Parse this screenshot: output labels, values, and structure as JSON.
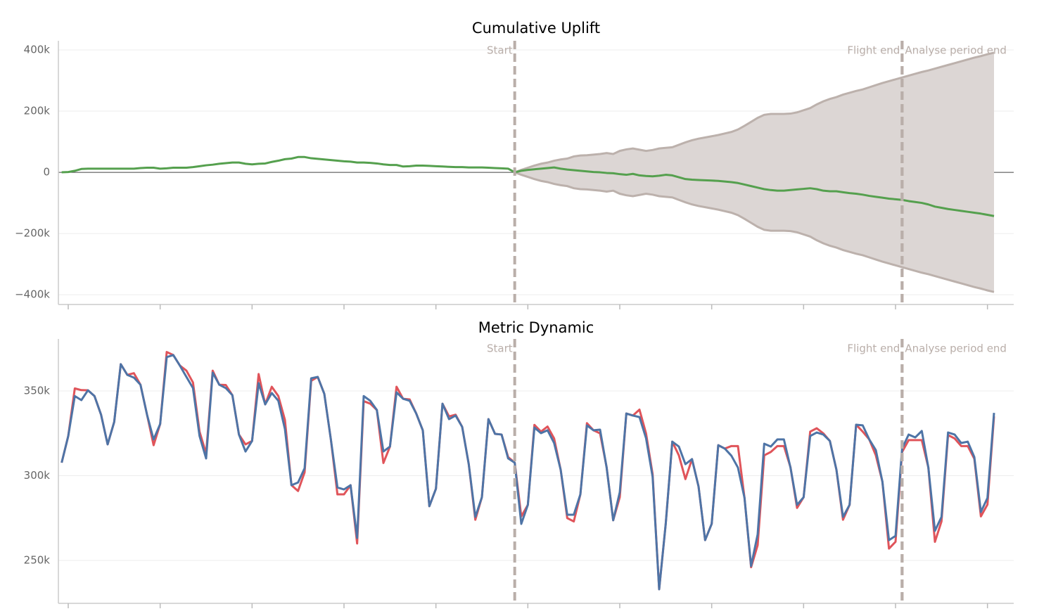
{
  "chart_data": [
    {
      "type": "line",
      "title": "Cumulative Uplift",
      "x": [
        0,
        1,
        2,
        3,
        4,
        5,
        6,
        7,
        8,
        9,
        10,
        11,
        12,
        13,
        14,
        15,
        16,
        17,
        18,
        19,
        20,
        21,
        22,
        23,
        24,
        25,
        26,
        27,
        28,
        29,
        30,
        31,
        32,
        33,
        34,
        35,
        36,
        37,
        38,
        39,
        40,
        41,
        42,
        43,
        44,
        45,
        46,
        47,
        48,
        49,
        50,
        51,
        52,
        53,
        54,
        55,
        56,
        57,
        58,
        59,
        60,
        61,
        62,
        63,
        64,
        65,
        66,
        67,
        68,
        69,
        70,
        71,
        72,
        73,
        74,
        75,
        76,
        77,
        78,
        79,
        80,
        81,
        82,
        83,
        84,
        85,
        86,
        87,
        88,
        89,
        90,
        91,
        92,
        93,
        94,
        95,
        96,
        97,
        98,
        99,
        100,
        101,
        102,
        103,
        104,
        105,
        106,
        107,
        108,
        109,
        110,
        111,
        112,
        113,
        114,
        115,
        116,
        117,
        118,
        119,
        120,
        121,
        122,
        123,
        124,
        125,
        126,
        127,
        128,
        129,
        130,
        131,
        132,
        133,
        134,
        135,
        136,
        137,
        138,
        139,
        140,
        141,
        142
      ],
      "series": [
        {
          "color": "#55a04e",
          "values": [
            0,
            1000,
            5000,
            11000,
            12000,
            12000,
            12000,
            12000,
            12000,
            12000,
            12000,
            12000,
            14000,
            15000,
            15000,
            12000,
            13000,
            15000,
            15000,
            15000,
            17000,
            20000,
            23000,
            25000,
            28000,
            30000,
            32000,
            32000,
            28000,
            26000,
            28000,
            29000,
            34000,
            38000,
            43000,
            45000,
            50000,
            50000,
            46000,
            44000,
            42000,
            40000,
            38000,
            36000,
            35000,
            32000,
            32000,
            31000,
            29000,
            26000,
            24000,
            24000,
            19000,
            20000,
            22000,
            22000,
            21000,
            20000,
            19000,
            18000,
            17000,
            17000,
            16000,
            16000,
            16000,
            15000,
            14000,
            13000,
            12000,
            0,
            5000,
            8000,
            10000,
            12000,
            14000,
            16000,
            12000,
            9000,
            7000,
            5000,
            3000,
            1000,
            0,
            -2000,
            -3000,
            -6000,
            -8000,
            -5000,
            -10000,
            -12000,
            -13000,
            -11000,
            -8000,
            -10000,
            -16000,
            -22000,
            -24000,
            -25000,
            -26000,
            -27000,
            -28000,
            -30000,
            -32000,
            -35000,
            -40000,
            -45000,
            -50000,
            -55000,
            -58000,
            -60000,
            -60000,
            -58000,
            -56000,
            -54000,
            -52000,
            -55000,
            -60000,
            -62000,
            -62000,
            -65000,
            -68000,
            -70000,
            -73000,
            -77000,
            -80000,
            -83000,
            -86000,
            -88000,
            -90000,
            -94000,
            -97000,
            -100000,
            -105000,
            -112000,
            -116000,
            -120000,
            -123000,
            -126000,
            -129000,
            -132000,
            -135000,
            -139000,
            -143000
          ]
        }
      ],
      "band": {
        "color": "#dcd6d4",
        "line_color": "#bcb1ac",
        "upper": [
          null,
          null,
          null,
          null,
          null,
          null,
          null,
          null,
          null,
          null,
          null,
          null,
          null,
          null,
          null,
          null,
          null,
          null,
          null,
          null,
          null,
          null,
          null,
          null,
          null,
          null,
          null,
          null,
          null,
          null,
          null,
          null,
          null,
          null,
          null,
          null,
          null,
          null,
          null,
          null,
          null,
          null,
          null,
          null,
          null,
          null,
          null,
          null,
          null,
          null,
          null,
          null,
          null,
          null,
          null,
          null,
          null,
          null,
          null,
          null,
          null,
          null,
          null,
          null,
          null,
          null,
          null,
          null,
          null,
          0,
          8000,
          15000,
          22000,
          28000,
          32000,
          38000,
          42000,
          45000,
          52000,
          55000,
          56000,
          58000,
          60000,
          63000,
          60000,
          70000,
          75000,
          78000,
          74000,
          70000,
          73000,
          78000,
          80000,
          82000,
          90000,
          98000,
          105000,
          110000,
          114000,
          118000,
          122000,
          127000,
          132000,
          140000,
          152000,
          165000,
          178000,
          188000,
          191000,
          191000,
          191000,
          192000,
          196000,
          203000,
          210000,
          222000,
          232000,
          240000,
          246000,
          254000,
          260000,
          266000,
          271000,
          278000,
          285000,
          292000,
          298000,
          304000,
          310000,
          316000,
          322000,
          328000,
          333000,
          339000,
          345000,
          351000,
          357000,
          363000,
          369000,
          375000,
          380000,
          386000,
          391000
        ],
        "lower": [
          null,
          null,
          null,
          null,
          null,
          null,
          null,
          null,
          null,
          null,
          null,
          null,
          null,
          null,
          null,
          null,
          null,
          null,
          null,
          null,
          null,
          null,
          null,
          null,
          null,
          null,
          null,
          null,
          null,
          null,
          null,
          null,
          null,
          null,
          null,
          null,
          null,
          null,
          null,
          null,
          null,
          null,
          null,
          null,
          null,
          null,
          null,
          null,
          null,
          null,
          null,
          null,
          null,
          null,
          null,
          null,
          null,
          null,
          null,
          null,
          null,
          null,
          null,
          null,
          null,
          null,
          null,
          null,
          null,
          0,
          -8000,
          -15000,
          -22000,
          -28000,
          -32000,
          -38000,
          -42000,
          -45000,
          -52000,
          -55000,
          -56000,
          -58000,
          -60000,
          -63000,
          -60000,
          -70000,
          -75000,
          -78000,
          -74000,
          -70000,
          -73000,
          -78000,
          -80000,
          -82000,
          -90000,
          -98000,
          -105000,
          -110000,
          -114000,
          -118000,
          -122000,
          -127000,
          -132000,
          -140000,
          -152000,
          -165000,
          -178000,
          -188000,
          -191000,
          -191000,
          -191000,
          -192000,
          -196000,
          -203000,
          -210000,
          -222000,
          -232000,
          -240000,
          -246000,
          -254000,
          -260000,
          -266000,
          -271000,
          -278000,
          -285000,
          -292000,
          -298000,
          -304000,
          -310000,
          -316000,
          -322000,
          -328000,
          -333000,
          -339000,
          -345000,
          -351000,
          -357000,
          -363000,
          -369000,
          -375000,
          -380000,
          -386000,
          -391000
        ]
      },
      "xlim": [
        -0.5,
        145
      ],
      "xticks": [
        1,
        15,
        29,
        43,
        57,
        71,
        85,
        99,
        113,
        127,
        141
      ],
      "ylim": [
        -432000,
        430000
      ],
      "yticks": [
        {
          "value": -400000,
          "label": "−400k"
        },
        {
          "value": -200000,
          "label": "−200k"
        },
        0,
        {
          "value": 200000,
          "label": "200k"
        },
        {
          "value": 400000,
          "label": "400k"
        }
      ],
      "grid": true,
      "zeroline": true,
      "marker_color": "#b9aea9",
      "markers": [
        {
          "label": "Start",
          "x": 69,
          "anchor": "end"
        },
        {
          "label": "Flight end",
          "x": 128,
          "anchor": "end"
        },
        {
          "label": "Analyse period end",
          "x": 128,
          "anchor": "start"
        }
      ]
    },
    {
      "type": "line",
      "title": "Metric Dynamic",
      "x": [
        0,
        1,
        2,
        3,
        4,
        5,
        6,
        7,
        8,
        9,
        10,
        11,
        12,
        13,
        14,
        15,
        16,
        17,
        18,
        19,
        20,
        21,
        22,
        23,
        24,
        25,
        26,
        27,
        28,
        29,
        30,
        31,
        32,
        33,
        34,
        35,
        36,
        37,
        38,
        39,
        40,
        41,
        42,
        43,
        44,
        45,
        46,
        47,
        48,
        49,
        50,
        51,
        52,
        53,
        54,
        55,
        56,
        57,
        58,
        59,
        60,
        61,
        62,
        63,
        64,
        65,
        66,
        67,
        68,
        69,
        70,
        71,
        72,
        73,
        74,
        75,
        76,
        77,
        78,
        79,
        80,
        81,
        82,
        83,
        84,
        85,
        86,
        87,
        88,
        89,
        90,
        91,
        92,
        93,
        94,
        95,
        96,
        97,
        98,
        99,
        100,
        101,
        102,
        103,
        104,
        105,
        106,
        107,
        108,
        109,
        110,
        111,
        112,
        113,
        114,
        115,
        116,
        117,
        118,
        119,
        120,
        121,
        122,
        123,
        124,
        125,
        126,
        127,
        128,
        129,
        130,
        131,
        132,
        133,
        134,
        135,
        136,
        137,
        138,
        139,
        140,
        141,
        142
      ],
      "series": [
        {
          "color": "#e0545a",
          "values": [
            307700,
            323400,
            351500,
            350500,
            350400,
            347000,
            336000,
            318500,
            331700,
            365800,
            359500,
            360500,
            353700,
            336000,
            318000,
            330500,
            373000,
            371200,
            365000,
            362000,
            355000,
            326000,
            313000,
            362000,
            353700,
            353500,
            347500,
            324300,
            318500,
            320500,
            360000,
            342100,
            352500,
            347000,
            333000,
            294400,
            291000,
            302000,
            356000,
            358300,
            348300,
            321400,
            289000,
            289000,
            294400,
            260000,
            344000,
            342500,
            338800,
            307500,
            317200,
            352500,
            345400,
            345000,
            336700,
            326800,
            282000,
            292300,
            342500,
            335000,
            336000,
            328800,
            306800,
            274000,
            287300,
            333400,
            324700,
            324300,
            311000,
            307700,
            276000,
            282800,
            330000,
            326000,
            329000,
            322000,
            303500,
            275000,
            273000,
            289000,
            331000,
            326800,
            325000,
            305000,
            273700,
            287300,
            336700,
            335500,
            339000,
            325000,
            301000,
            233000,
            271600,
            320100,
            312000,
            298000,
            309800,
            293600,
            262000,
            271600,
            318000,
            316000,
            317500,
            317500,
            286900,
            246000,
            259000,
            312000,
            314000,
            317500,
            317500,
            305000,
            281000,
            287300,
            326000,
            328000,
            325000,
            320500,
            303500,
            274000,
            282800,
            330100,
            326000,
            321400,
            312000,
            296500,
            257000,
            261000,
            314000,
            321000,
            321000,
            321000,
            304800,
            261000,
            273000,
            324000,
            322000,
            317500,
            317500,
            310000,
            276000,
            283000,
            335000
          ]
        },
        {
          "color": "#4e74a6",
          "values": [
            307700,
            323400,
            347000,
            344600,
            350400,
            347000,
            336000,
            318500,
            331700,
            365800,
            359500,
            357900,
            353700,
            336000,
            321400,
            330500,
            370000,
            371200,
            365000,
            358300,
            351700,
            323400,
            310200,
            360800,
            353700,
            351700,
            347500,
            324300,
            314300,
            320500,
            354600,
            342100,
            348800,
            344200,
            327600,
            294400,
            296000,
            304400,
            357500,
            358300,
            348300,
            321400,
            293100,
            291900,
            294400,
            263300,
            347000,
            344200,
            338800,
            314300,
            317200,
            349200,
            345400,
            344200,
            336700,
            326800,
            282000,
            292300,
            342500,
            333400,
            335500,
            328800,
            306800,
            275700,
            287300,
            333400,
            324700,
            324300,
            310200,
            307700,
            271600,
            282800,
            328400,
            325100,
            326800,
            319300,
            303500,
            277000,
            277000,
            289000,
            329700,
            326800,
            327200,
            304800,
            273700,
            290200,
            336700,
            335500,
            334600,
            322200,
            299400,
            233000,
            271600,
            320100,
            317200,
            306800,
            309800,
            293600,
            262000,
            271600,
            318000,
            316000,
            311800,
            304800,
            286900,
            246700,
            265400,
            318900,
            317200,
            321400,
            321400,
            304800,
            282800,
            287300,
            323400,
            325500,
            324300,
            320500,
            303500,
            275700,
            282800,
            330100,
            329700,
            321400,
            315100,
            296500,
            262000,
            264500,
            316000,
            324300,
            322600,
            326400,
            304800,
            267500,
            275700,
            325500,
            324300,
            319300,
            320100,
            311000,
            278600,
            286900,
            337100
          ]
        }
      ],
      "xlim": [
        -0.5,
        145
      ],
      "xticks": [
        1,
        15,
        29,
        43,
        57,
        71,
        85,
        99,
        113,
        127,
        141
      ],
      "ylim": [
        224700,
        380700
      ],
      "yticks": [
        {
          "value": 250000,
          "label": "250k"
        },
        {
          "value": 300000,
          "label": "300k"
        },
        {
          "value": 350000,
          "label": "350k"
        }
      ],
      "grid": true,
      "marker_color": "#b9aea9",
      "markers": [
        {
          "label": "Start",
          "x": 69,
          "anchor": "end"
        },
        {
          "label": "Flight end",
          "x": 128,
          "anchor": "end"
        },
        {
          "label": "Analyse period end",
          "x": 128,
          "anchor": "start"
        }
      ]
    }
  ]
}
